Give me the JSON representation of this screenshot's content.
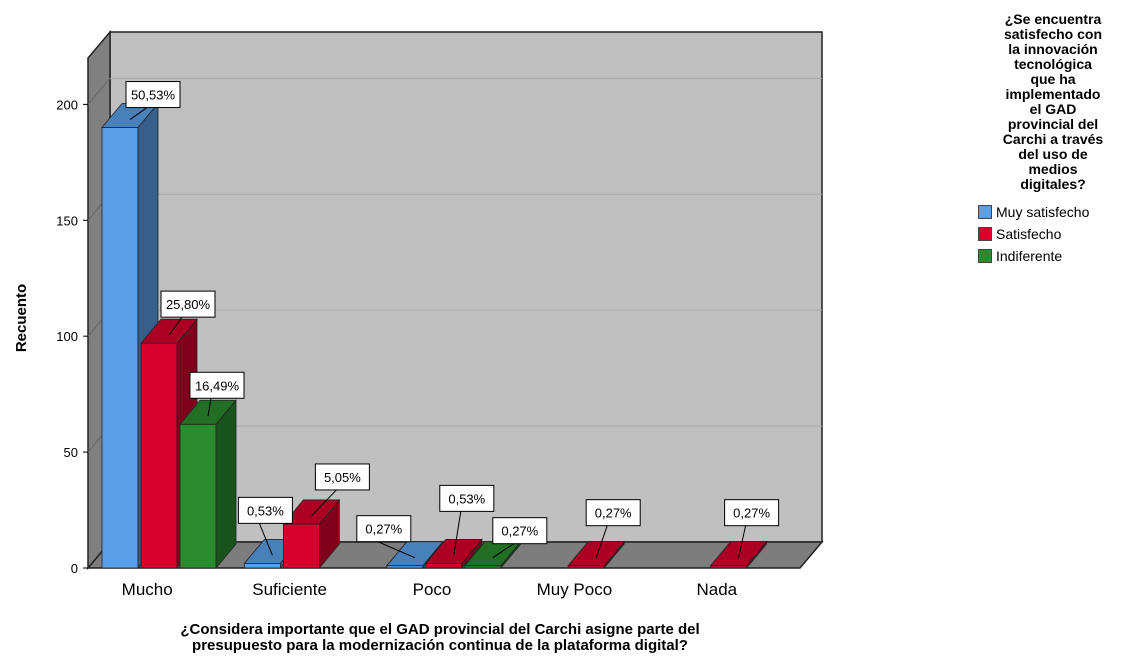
{
  "chart_data": {
    "type": "bar",
    "style": "3d-clustered",
    "categories": [
      "Mucho",
      "Suficiente",
      "Poco",
      "Muy Poco",
      "Nada"
    ],
    "series": [
      {
        "name": "Muy satisfecho",
        "color": "#5aa0e8",
        "values": [
          190,
          2,
          1,
          0,
          0
        ],
        "labels": [
          "50,53%",
          "0,53%",
          "0,27%",
          "",
          ""
        ]
      },
      {
        "name": "Satisfecho",
        "color": "#d6002d",
        "values": [
          97,
          19,
          2,
          1,
          1
        ],
        "labels": [
          "25,80%",
          "5,05%",
          "0,53%",
          "0,27%",
          "0,27%"
        ]
      },
      {
        "name": "Indiferente",
        "color": "#2a8a2e",
        "values": [
          62,
          0,
          1,
          0,
          0
        ],
        "labels": [
          "16,49%",
          "",
          "0,27%",
          "",
          ""
        ]
      }
    ],
    "ylabel": "Recuento",
    "xlabel": "¿Considera importante que el GAD provincial del Carchi asigne parte del\npresupuesto para la modernización continua de la plataforma digital?",
    "ylim": [
      0,
      220
    ],
    "yticks": [
      0,
      50,
      100,
      150,
      200
    ],
    "grid": true,
    "legend_title": "¿Se encuentra\nsatisfecho con\nla innovación\ntecnológica\nque ha\nimplementado\nel GAD\nprovincial del\nCarchi a través\ndel uso de\nmedios\ndigitales?",
    "legend_position": "right"
  }
}
